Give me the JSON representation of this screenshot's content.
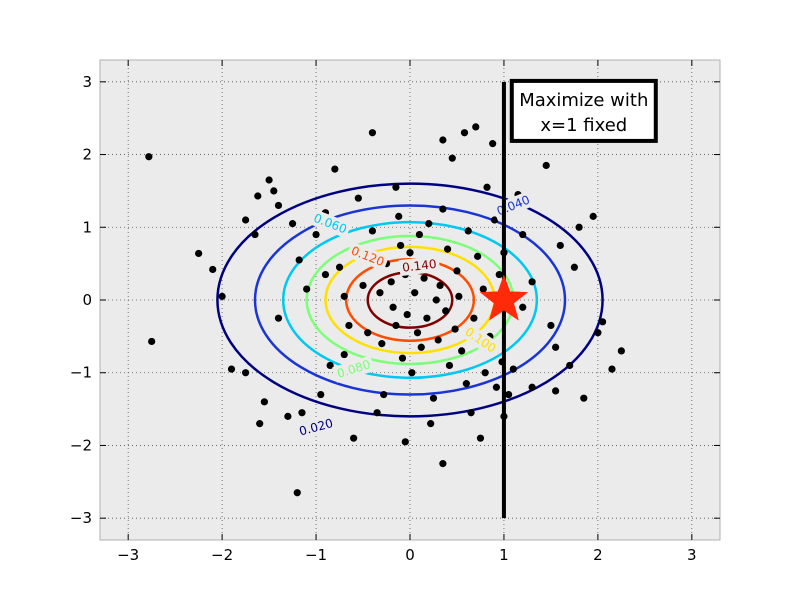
{
  "chart_data": {
    "type": "scatter",
    "title": "",
    "xlabel": "",
    "ylabel": "",
    "xlim": [
      -3.3,
      3.3
    ],
    "ylim": [
      -3.3,
      3.3
    ],
    "xticks": [
      -3,
      -2,
      -1,
      0,
      1,
      2,
      3
    ],
    "yticks": [
      -3,
      -2,
      -1,
      0,
      1,
      2,
      3
    ],
    "xtick_labels": [
      "−3",
      "−2",
      "−1",
      "0",
      "1",
      "2",
      "3"
    ],
    "ytick_labels": [
      "−3",
      "−2",
      "−1",
      "0",
      "1",
      "2",
      "3"
    ],
    "grid": true,
    "background": "#ebebeb",
    "contours": [
      {
        "level": 0.02,
        "label": "0.020",
        "rx": 2.05,
        "ry": 1.6,
        "color": "#000080"
      },
      {
        "level": 0.04,
        "label": "0.040",
        "rx": 1.65,
        "ry": 1.3,
        "color": "#1a35d4"
      },
      {
        "level": 0.06,
        "label": "0.060",
        "rx": 1.35,
        "ry": 1.07,
        "color": "#00c8f0"
      },
      {
        "level": 0.08,
        "label": "0.080",
        "rx": 1.1,
        "ry": 0.88,
        "color": "#7cff79"
      },
      {
        "level": 0.1,
        "label": "0.100",
        "rx": 0.9,
        "ry": 0.73,
        "color": "#ffe000"
      },
      {
        "level": 0.12,
        "label": "0.120",
        "rx": 0.68,
        "ry": 0.56,
        "color": "#ff4c00"
      },
      {
        "level": 0.14,
        "label": "0.140",
        "rx": 0.45,
        "ry": 0.38,
        "color": "#800000"
      }
    ],
    "contour_label_positions": [
      {
        "level": 0.02,
        "x": -1.0,
        "y": -1.75
      },
      {
        "level": 0.04,
        "x": 1.1,
        "y": 1.3
      },
      {
        "level": 0.06,
        "x": -0.85,
        "y": 1.05
      },
      {
        "level": 0.08,
        "x": -0.6,
        "y": -0.95
      },
      {
        "level": 0.1,
        "x": 0.75,
        "y": -0.55
      },
      {
        "level": 0.12,
        "x": -0.45,
        "y": 0.6
      },
      {
        "level": 0.14,
        "x": 0.1,
        "y": 0.47
      }
    ],
    "points": [
      [
        -2.78,
        1.97
      ],
      [
        -2.75,
        -0.57
      ],
      [
        -2.25,
        0.64
      ],
      [
        -2.1,
        0.42
      ],
      [
        -1.75,
        -1.0
      ],
      [
        -1.6,
        -1.7
      ],
      [
        -1.62,
        1.43
      ],
      [
        -1.5,
        1.65
      ],
      [
        -1.45,
        1.5
      ],
      [
        -1.4,
        1.3
      ],
      [
        -1.3,
        -1.6
      ],
      [
        -1.15,
        -1.55
      ],
      [
        -1.2,
        -2.65
      ],
      [
        -1.18,
        0.55
      ],
      [
        -1.0,
        0.9
      ],
      [
        -0.9,
        0.35
      ],
      [
        -0.85,
        -0.9
      ],
      [
        -0.8,
        1.8
      ],
      [
        -0.75,
        0.45
      ],
      [
        -0.7,
        0.05
      ],
      [
        -0.65,
        -0.35
      ],
      [
        -0.6,
        0.7
      ],
      [
        -0.55,
        1.4
      ],
      [
        -0.5,
        0.2
      ],
      [
        -0.45,
        -0.45
      ],
      [
        -0.4,
        0.95
      ],
      [
        -0.35,
        -1.55
      ],
      [
        -0.32,
        0.1
      ],
      [
        -0.3,
        -0.6
      ],
      [
        -0.28,
        -1.3
      ],
      [
        -0.25,
        0.5
      ],
      [
        -0.2,
        0.25
      ],
      [
        -0.18,
        -0.1
      ],
      [
        -0.15,
        -0.35
      ],
      [
        -0.12,
        1.15
      ],
      [
        -0.1,
        0.75
      ],
      [
        -0.08,
        -0.8
      ],
      [
        -0.05,
        0.35
      ],
      [
        -0.03,
        -0.2
      ],
      [
        0.0,
        0.65
      ],
      [
        0.02,
        -1.0
      ],
      [
        0.05,
        0.1
      ],
      [
        0.08,
        -0.45
      ],
      [
        0.1,
        0.9
      ],
      [
        0.12,
        -0.65
      ],
      [
        0.15,
        0.3
      ],
      [
        0.18,
        -0.25
      ],
      [
        0.2,
        1.05
      ],
      [
        0.22,
        -1.7
      ],
      [
        0.25,
        0.55
      ],
      [
        0.28,
        0.0
      ],
      [
        0.3,
        -0.55
      ],
      [
        0.32,
        0.2
      ],
      [
        0.35,
        1.25
      ],
      [
        0.38,
        -0.15
      ],
      [
        0.4,
        0.7
      ],
      [
        0.42,
        -0.9
      ],
      [
        0.45,
        1.95
      ],
      [
        0.48,
        -0.4
      ],
      [
        0.5,
        0.4
      ],
      [
        0.52,
        0.05
      ],
      [
        0.55,
        -0.7
      ],
      [
        0.58,
        2.3
      ],
      [
        0.6,
        -1.15
      ],
      [
        0.62,
        0.95
      ],
      [
        0.65,
        -1.55
      ],
      [
        0.68,
        -0.25
      ],
      [
        0.7,
        2.38
      ],
      [
        0.72,
        0.6
      ],
      [
        0.75,
        -1.9
      ],
      [
        0.78,
        0.15
      ],
      [
        0.8,
        -1.0
      ],
      [
        0.82,
        1.55
      ],
      [
        0.85,
        -0.5
      ],
      [
        0.88,
        2.15
      ],
      [
        0.9,
        1.1
      ],
      [
        0.92,
        -1.2
      ],
      [
        0.95,
        0.35
      ],
      [
        0.98,
        -0.85
      ],
      [
        1.0,
        0.65
      ],
      [
        1.05,
        -1.3
      ],
      [
        1.1,
        -0.95
      ],
      [
        1.15,
        1.45
      ],
      [
        1.2,
        0.9
      ],
      [
        1.3,
        -1.2
      ],
      [
        1.45,
        1.85
      ],
      [
        1.5,
        -0.35
      ],
      [
        1.55,
        -1.25
      ],
      [
        1.6,
        0.75
      ],
      [
        1.7,
        -0.9
      ],
      [
        1.75,
        0.45
      ],
      [
        1.8,
        1.0
      ],
      [
        1.85,
        -1.35
      ],
      [
        1.95,
        1.15
      ],
      [
        2.0,
        -0.45
      ],
      [
        2.05,
        -0.3
      ],
      [
        2.15,
        -0.95
      ],
      [
        2.25,
        -0.7
      ],
      [
        -1.55,
        -1.4
      ],
      [
        -1.25,
        1.05
      ],
      [
        -0.95,
        -1.3
      ],
      [
        -0.6,
        -1.9
      ],
      [
        0.35,
        -2.25
      ],
      [
        -0.05,
        -1.95
      ],
      [
        -1.65,
        0.9
      ],
      [
        1.3,
        0.25
      ],
      [
        -2.0,
        0.05
      ],
      [
        -0.4,
        2.3
      ],
      [
        0.35,
        2.2
      ],
      [
        -0.9,
        1.2
      ],
      [
        1.0,
        -1.6
      ],
      [
        1.55,
        -0.65
      ],
      [
        -1.4,
        -0.25
      ],
      [
        -1.1,
        0.15
      ],
      [
        -0.15,
        1.55
      ],
      [
        0.25,
        -1.35
      ],
      [
        1.2,
        -0.1
      ],
      [
        -0.7,
        -0.75
      ],
      [
        -1.9,
        -0.95
      ],
      [
        -1.75,
        1.1
      ]
    ],
    "marker": {
      "type": "star",
      "x": 1.0,
      "y": 0.0,
      "color": "#ff2a0a"
    },
    "vertical_line": {
      "x": 1.0,
      "y_from": -3.0,
      "y_to": 3.0,
      "color": "#000000"
    },
    "annotation": {
      "lines": [
        "Maximize with",
        "x=1 fixed"
      ],
      "x": 1.85,
      "y": 2.6
    }
  }
}
